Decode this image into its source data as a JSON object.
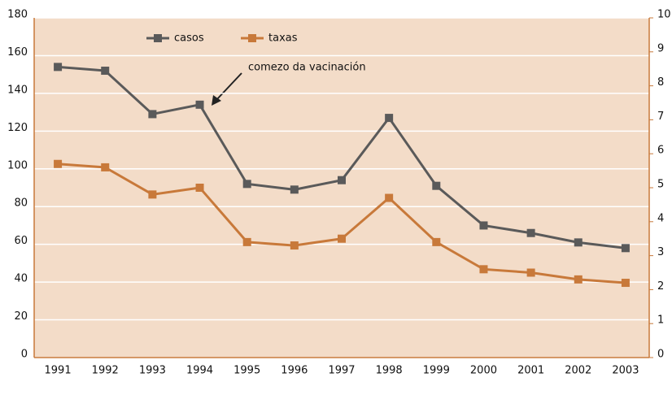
{
  "chart_data": {
    "type": "line",
    "categories": [
      "1991",
      "1992",
      "1993",
      "1994",
      "1995",
      "1996",
      "1997",
      "1998",
      "1999",
      "2000",
      "2001",
      "2002",
      "2003"
    ],
    "series": [
      {
        "name": "casos",
        "color": "#5a5a5a",
        "values": [
          154,
          152,
          129,
          134,
          92,
          89,
          94,
          127,
          91,
          70,
          66,
          61,
          58
        ]
      },
      {
        "name": "taxas",
        "color": "#c8793a",
        "axis": "y2",
        "values": [
          5.7,
          5.6,
          4.8,
          5.0,
          3.4,
          3.3,
          3.5,
          4.7,
          3.4,
          2.6,
          2.5,
          2.3,
          2.2
        ]
      }
    ],
    "annotation": "comezo da vacinación",
    "ylim": [
      0,
      180
    ],
    "yticks": [
      0,
      20,
      40,
      60,
      80,
      100,
      120,
      140,
      160,
      180
    ],
    "y2lim": [
      0,
      10
    ],
    "y2ticks": [
      0,
      1,
      2,
      3,
      4,
      5,
      6,
      7,
      8,
      9,
      10
    ],
    "grid": true
  }
}
